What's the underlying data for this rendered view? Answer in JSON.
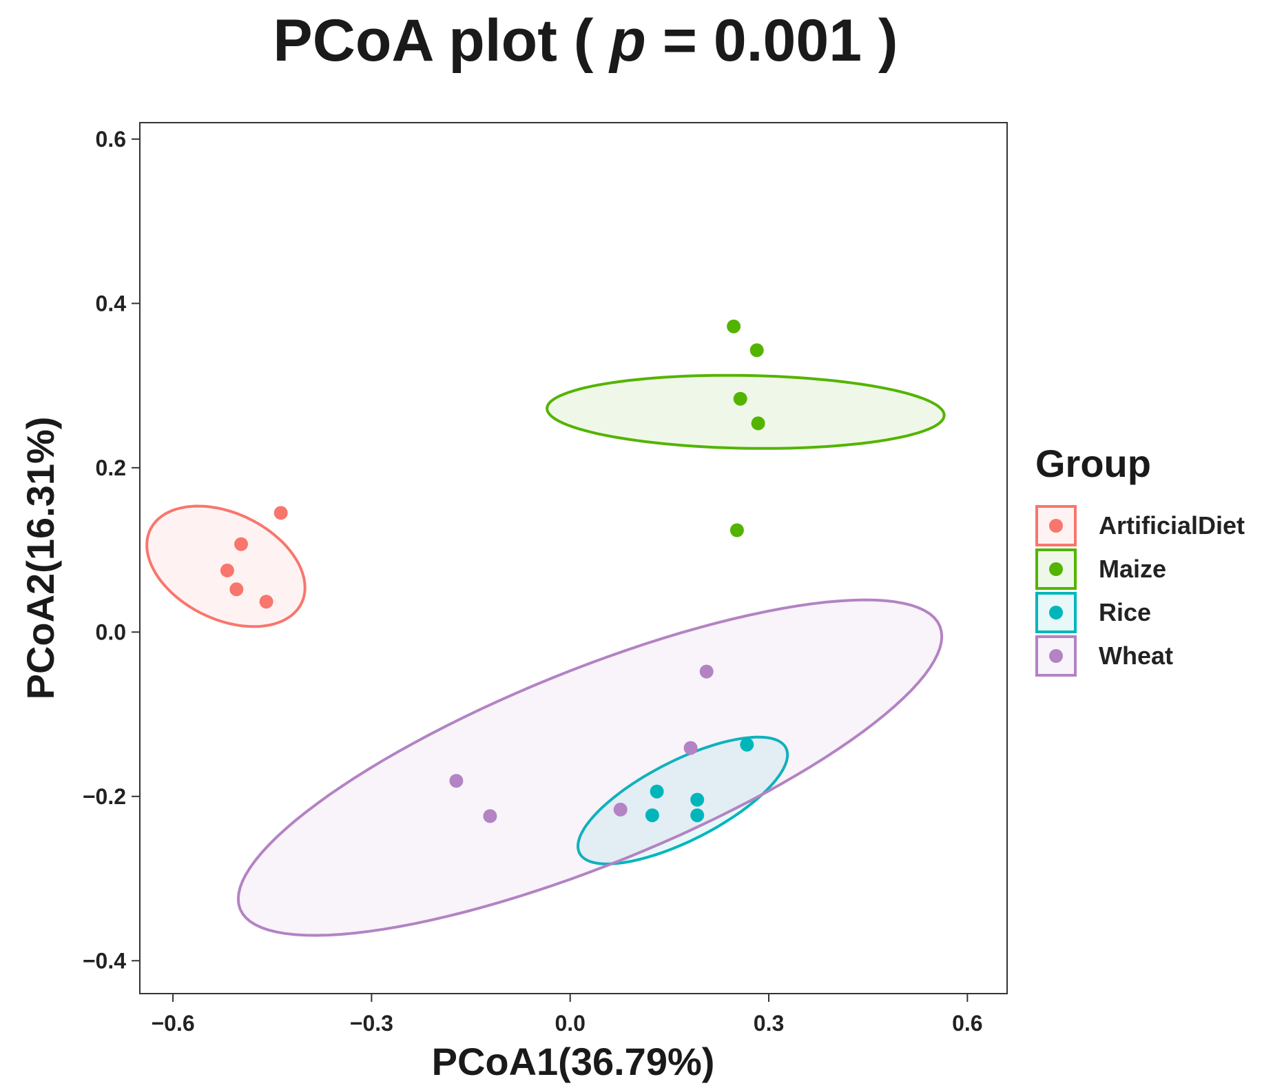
{
  "chart_data": {
    "type": "scatter",
    "title": {
      "prefix": "PCoA plot ( ",
      "p_symbol": "p",
      "suffix": " = 0.001 )"
    },
    "xlabel": "PCoA1(36.79%)",
    "ylabel": "PCoA2(16.31%)",
    "xlim": [
      -0.65,
      0.66
    ],
    "ylim": [
      -0.44,
      0.62
    ],
    "xticks": [
      -0.6,
      -0.3,
      0.0,
      0.3,
      0.6
    ],
    "yticks": [
      -0.4,
      -0.2,
      0.0,
      0.2,
      0.4,
      0.6
    ],
    "xtick_labels": [
      "−0.6",
      "−0.3",
      "0.0",
      "0.3",
      "0.6"
    ],
    "ytick_labels": [
      "−0.4",
      "−0.2",
      "0.0",
      "0.2",
      "0.4",
      "0.6"
    ],
    "grid": false,
    "legend": {
      "title": "Group",
      "position": "right"
    },
    "series": [
      {
        "name": "ArtificialDiet",
        "color": "#F8766D",
        "points": [
          [
            -0.437,
            0.145
          ],
          [
            -0.497,
            0.107
          ],
          [
            -0.518,
            0.075
          ],
          [
            -0.504,
            0.052
          ],
          [
            -0.459,
            0.037
          ]
        ],
        "ellipse": {
          "cx": -0.52,
          "cy": 0.08,
          "rx": 0.08,
          "ry": 0.127,
          "angle": 64
        }
      },
      {
        "name": "Maize",
        "color": "#53B400",
        "points": [
          [
            0.247,
            0.372
          ],
          [
            0.282,
            0.343
          ],
          [
            0.257,
            0.284
          ],
          [
            0.284,
            0.254
          ],
          [
            0.252,
            0.124
          ]
        ],
        "ellipse": {
          "cx": 0.265,
          "cy": 0.268,
          "rx": 0.055,
          "ry": 0.3,
          "angle": 89
        }
      },
      {
        "name": "Rice",
        "color": "#00B6BB",
        "points": [
          [
            0.267,
            -0.137
          ],
          [
            0.131,
            -0.194
          ],
          [
            0.192,
            -0.204
          ],
          [
            0.124,
            -0.223
          ],
          [
            0.192,
            -0.223
          ]
        ],
        "ellipse": {
          "cx": 0.17,
          "cy": -0.205,
          "rx": 0.175,
          "ry": 0.06,
          "angle": 27
        }
      },
      {
        "name": "Wheat",
        "color": "#B383C3",
        "points": [
          [
            0.206,
            -0.048
          ],
          [
            0.182,
            -0.141
          ],
          [
            -0.172,
            -0.181
          ],
          [
            0.076,
            -0.216
          ],
          [
            -0.121,
            -0.224
          ]
        ],
        "ellipse": {
          "cx": 0.03,
          "cy": -0.165,
          "rx": 0.57,
          "ry": 0.147,
          "angle": 22
        }
      }
    ]
  }
}
